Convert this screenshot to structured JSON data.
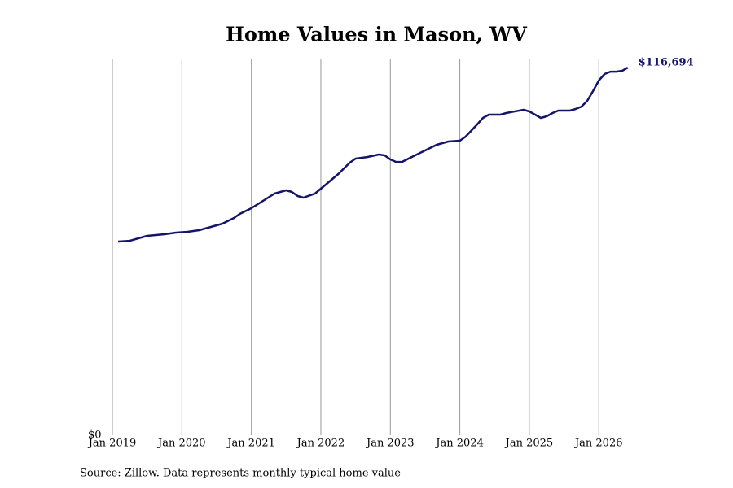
{
  "chart_data": {
    "type": "line",
    "title": "Home Values in Mason, WV",
    "source": "Source: Zillow. Data represents monthly typical home value",
    "x": [
      "2019-02",
      "2019-04",
      "2019-06",
      "2019-07",
      "2019-10",
      "2019-12",
      "2020-02",
      "2020-04",
      "2020-06",
      "2020-08",
      "2020-10",
      "2020-11",
      "2021-01",
      "2021-03",
      "2021-05",
      "2021-07",
      "2021-08",
      "2021-09",
      "2021-10",
      "2021-12",
      "2022-02",
      "2022-04",
      "2022-06",
      "2022-07",
      "2022-09",
      "2022-11",
      "2022-12",
      "2023-01",
      "2023-02",
      "2023-03",
      "2023-05",
      "2023-07",
      "2023-09",
      "2023-11",
      "2024-01",
      "2024-02",
      "2024-04",
      "2024-05",
      "2024-06",
      "2024-08",
      "2024-09",
      "2024-12",
      "2025-01",
      "2025-03",
      "2025-04",
      "2025-05",
      "2025-06",
      "2025-08",
      "2025-09",
      "2025-10",
      "2025-11",
      "2025-12",
      "2026-01",
      "2026-02",
      "2026-03",
      "2026-04",
      "2026-05",
      "2026-06"
    ],
    "values": [
      61450,
      61700,
      62740,
      63260,
      63780,
      64300,
      64550,
      65070,
      66100,
      67130,
      68940,
      70230,
      72040,
      74360,
      76690,
      77720,
      77200,
      75910,
      75400,
      76690,
      79780,
      82880,
      86500,
      87790,
      88300,
      89080,
      88820,
      87530,
      86750,
      86750,
      88560,
      90370,
      92180,
      93210,
      93470,
      94760,
      98630,
      100700,
      101730,
      101730,
      102250,
      103280,
      102770,
      100700,
      101220,
      102250,
      103020,
      103020,
      103540,
      104310,
      106120,
      109220,
      112580,
      114640,
      115410,
      115410,
      115670,
      116694
    ],
    "end_label": "$116,694",
    "color": "#14146b",
    "xlim": [
      "2019-01",
      "2026-08"
    ],
    "xticks": [
      {
        "value": "2019-01",
        "label": "Jan 2019"
      },
      {
        "value": "2020-01",
        "label": "Jan 2020"
      },
      {
        "value": "2021-01",
        "label": "Jan 2021"
      },
      {
        "value": "2022-01",
        "label": "Jan 2022"
      },
      {
        "value": "2023-01",
        "label": "Jan 2023"
      },
      {
        "value": "2024-01",
        "label": "Jan 2024"
      },
      {
        "value": "2025-01",
        "label": "Jan 2025"
      },
      {
        "value": "2026-01",
        "label": "Jan 2026"
      }
    ],
    "ylim": [
      0,
      119300
    ],
    "yticks": [
      {
        "value": 0,
        "label": "$0"
      }
    ],
    "grid": true
  }
}
